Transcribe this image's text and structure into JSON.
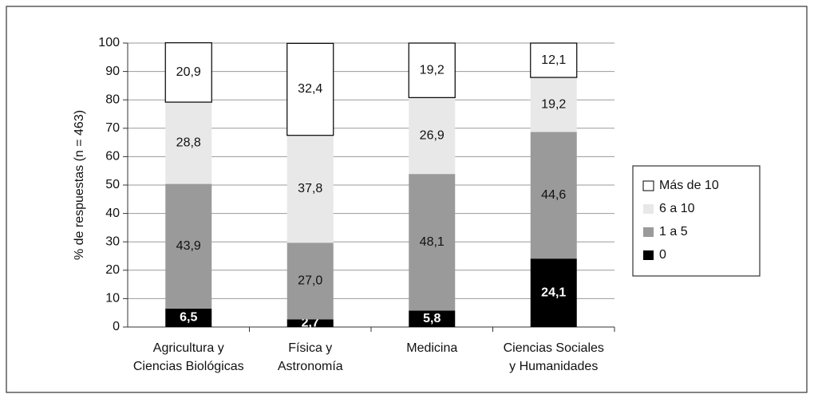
{
  "chart_data": {
    "type": "stacked_bar",
    "ylabel": "% de respuestas (n = 463)",
    "categories": [
      "Agricultura y\nCiencias Biológicas",
      "Física y\nAstronomía",
      "Medicina",
      "Ciencias Sociales\ny Humanidades"
    ],
    "series": [
      {
        "name": "0",
        "color": "#000000",
        "values": [
          6.5,
          2.7,
          5.8,
          24.1
        ],
        "value_labels": [
          "6,5",
          "2,7",
          "5,8",
          "24,1"
        ]
      },
      {
        "name": "1 a 5",
        "color": "#9a9a9a",
        "values": [
          43.9,
          27.0,
          48.1,
          44.6
        ],
        "value_labels": [
          "43,9",
          "27,0",
          "48,1",
          "44,6"
        ]
      },
      {
        "name": "6 a 10",
        "color": "#e8e8e8",
        "values": [
          28.8,
          37.8,
          26.9,
          19.2
        ],
        "value_labels": [
          "28,8",
          "37,8",
          "26,9",
          "19,2"
        ]
      },
      {
        "name": "Más de 10",
        "color": "#ffffff",
        "values": [
          20.9,
          32.4,
          19.2,
          12.1
        ],
        "value_labels": [
          "20,9",
          "32,4",
          "19,2",
          "12,1"
        ]
      }
    ],
    "ylim": [
      0,
      100
    ],
    "yticks": [
      0,
      10,
      20,
      30,
      40,
      50,
      60,
      70,
      80,
      90,
      100
    ],
    "grid": true,
    "legend": "right"
  }
}
